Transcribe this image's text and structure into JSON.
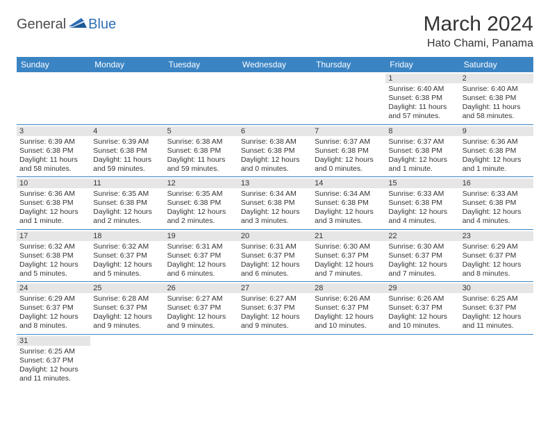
{
  "brand": {
    "general": "General",
    "blue": "Blue"
  },
  "title": "March 2024",
  "location": "Hato Chami, Panama",
  "colors": {
    "header_bg": "#3b84c4",
    "header_text": "#ffffff",
    "daynum_bg": "#e6e6e6",
    "border": "#3b84c4",
    "text": "#333333",
    "logo_gray": "#4a4a4a",
    "logo_blue": "#2e6fb5"
  },
  "weekdays": [
    "Sunday",
    "Monday",
    "Tuesday",
    "Wednesday",
    "Thursday",
    "Friday",
    "Saturday"
  ],
  "weeks": [
    [
      null,
      null,
      null,
      null,
      null,
      {
        "n": "1",
        "sunrise": "Sunrise: 6:40 AM",
        "sunset": "Sunset: 6:38 PM",
        "daylight": "Daylight: 11 hours and 57 minutes."
      },
      {
        "n": "2",
        "sunrise": "Sunrise: 6:40 AM",
        "sunset": "Sunset: 6:38 PM",
        "daylight": "Daylight: 11 hours and 58 minutes."
      }
    ],
    [
      {
        "n": "3",
        "sunrise": "Sunrise: 6:39 AM",
        "sunset": "Sunset: 6:38 PM",
        "daylight": "Daylight: 11 hours and 58 minutes."
      },
      {
        "n": "4",
        "sunrise": "Sunrise: 6:39 AM",
        "sunset": "Sunset: 6:38 PM",
        "daylight": "Daylight: 11 hours and 59 minutes."
      },
      {
        "n": "5",
        "sunrise": "Sunrise: 6:38 AM",
        "sunset": "Sunset: 6:38 PM",
        "daylight": "Daylight: 11 hours and 59 minutes."
      },
      {
        "n": "6",
        "sunrise": "Sunrise: 6:38 AM",
        "sunset": "Sunset: 6:38 PM",
        "daylight": "Daylight: 12 hours and 0 minutes."
      },
      {
        "n": "7",
        "sunrise": "Sunrise: 6:37 AM",
        "sunset": "Sunset: 6:38 PM",
        "daylight": "Daylight: 12 hours and 0 minutes."
      },
      {
        "n": "8",
        "sunrise": "Sunrise: 6:37 AM",
        "sunset": "Sunset: 6:38 PM",
        "daylight": "Daylight: 12 hours and 1 minute."
      },
      {
        "n": "9",
        "sunrise": "Sunrise: 6:36 AM",
        "sunset": "Sunset: 6:38 PM",
        "daylight": "Daylight: 12 hours and 1 minute."
      }
    ],
    [
      {
        "n": "10",
        "sunrise": "Sunrise: 6:36 AM",
        "sunset": "Sunset: 6:38 PM",
        "daylight": "Daylight: 12 hours and 1 minute."
      },
      {
        "n": "11",
        "sunrise": "Sunrise: 6:35 AM",
        "sunset": "Sunset: 6:38 PM",
        "daylight": "Daylight: 12 hours and 2 minutes."
      },
      {
        "n": "12",
        "sunrise": "Sunrise: 6:35 AM",
        "sunset": "Sunset: 6:38 PM",
        "daylight": "Daylight: 12 hours and 2 minutes."
      },
      {
        "n": "13",
        "sunrise": "Sunrise: 6:34 AM",
        "sunset": "Sunset: 6:38 PM",
        "daylight": "Daylight: 12 hours and 3 minutes."
      },
      {
        "n": "14",
        "sunrise": "Sunrise: 6:34 AM",
        "sunset": "Sunset: 6:38 PM",
        "daylight": "Daylight: 12 hours and 3 minutes."
      },
      {
        "n": "15",
        "sunrise": "Sunrise: 6:33 AM",
        "sunset": "Sunset: 6:38 PM",
        "daylight": "Daylight: 12 hours and 4 minutes."
      },
      {
        "n": "16",
        "sunrise": "Sunrise: 6:33 AM",
        "sunset": "Sunset: 6:38 PM",
        "daylight": "Daylight: 12 hours and 4 minutes."
      }
    ],
    [
      {
        "n": "17",
        "sunrise": "Sunrise: 6:32 AM",
        "sunset": "Sunset: 6:38 PM",
        "daylight": "Daylight: 12 hours and 5 minutes."
      },
      {
        "n": "18",
        "sunrise": "Sunrise: 6:32 AM",
        "sunset": "Sunset: 6:37 PM",
        "daylight": "Daylight: 12 hours and 5 minutes."
      },
      {
        "n": "19",
        "sunrise": "Sunrise: 6:31 AM",
        "sunset": "Sunset: 6:37 PM",
        "daylight": "Daylight: 12 hours and 6 minutes."
      },
      {
        "n": "20",
        "sunrise": "Sunrise: 6:31 AM",
        "sunset": "Sunset: 6:37 PM",
        "daylight": "Daylight: 12 hours and 6 minutes."
      },
      {
        "n": "21",
        "sunrise": "Sunrise: 6:30 AM",
        "sunset": "Sunset: 6:37 PM",
        "daylight": "Daylight: 12 hours and 7 minutes."
      },
      {
        "n": "22",
        "sunrise": "Sunrise: 6:30 AM",
        "sunset": "Sunset: 6:37 PM",
        "daylight": "Daylight: 12 hours and 7 minutes."
      },
      {
        "n": "23",
        "sunrise": "Sunrise: 6:29 AM",
        "sunset": "Sunset: 6:37 PM",
        "daylight": "Daylight: 12 hours and 8 minutes."
      }
    ],
    [
      {
        "n": "24",
        "sunrise": "Sunrise: 6:29 AM",
        "sunset": "Sunset: 6:37 PM",
        "daylight": "Daylight: 12 hours and 8 minutes."
      },
      {
        "n": "25",
        "sunrise": "Sunrise: 6:28 AM",
        "sunset": "Sunset: 6:37 PM",
        "daylight": "Daylight: 12 hours and 9 minutes."
      },
      {
        "n": "26",
        "sunrise": "Sunrise: 6:27 AM",
        "sunset": "Sunset: 6:37 PM",
        "daylight": "Daylight: 12 hours and 9 minutes."
      },
      {
        "n": "27",
        "sunrise": "Sunrise: 6:27 AM",
        "sunset": "Sunset: 6:37 PM",
        "daylight": "Daylight: 12 hours and 9 minutes."
      },
      {
        "n": "28",
        "sunrise": "Sunrise: 6:26 AM",
        "sunset": "Sunset: 6:37 PM",
        "daylight": "Daylight: 12 hours and 10 minutes."
      },
      {
        "n": "29",
        "sunrise": "Sunrise: 6:26 AM",
        "sunset": "Sunset: 6:37 PM",
        "daylight": "Daylight: 12 hours and 10 minutes."
      },
      {
        "n": "30",
        "sunrise": "Sunrise: 6:25 AM",
        "sunset": "Sunset: 6:37 PM",
        "daylight": "Daylight: 12 hours and 11 minutes."
      }
    ],
    [
      {
        "n": "31",
        "sunrise": "Sunrise: 6:25 AM",
        "sunset": "Sunset: 6:37 PM",
        "daylight": "Daylight: 12 hours and 11 minutes."
      },
      null,
      null,
      null,
      null,
      null,
      null
    ]
  ]
}
